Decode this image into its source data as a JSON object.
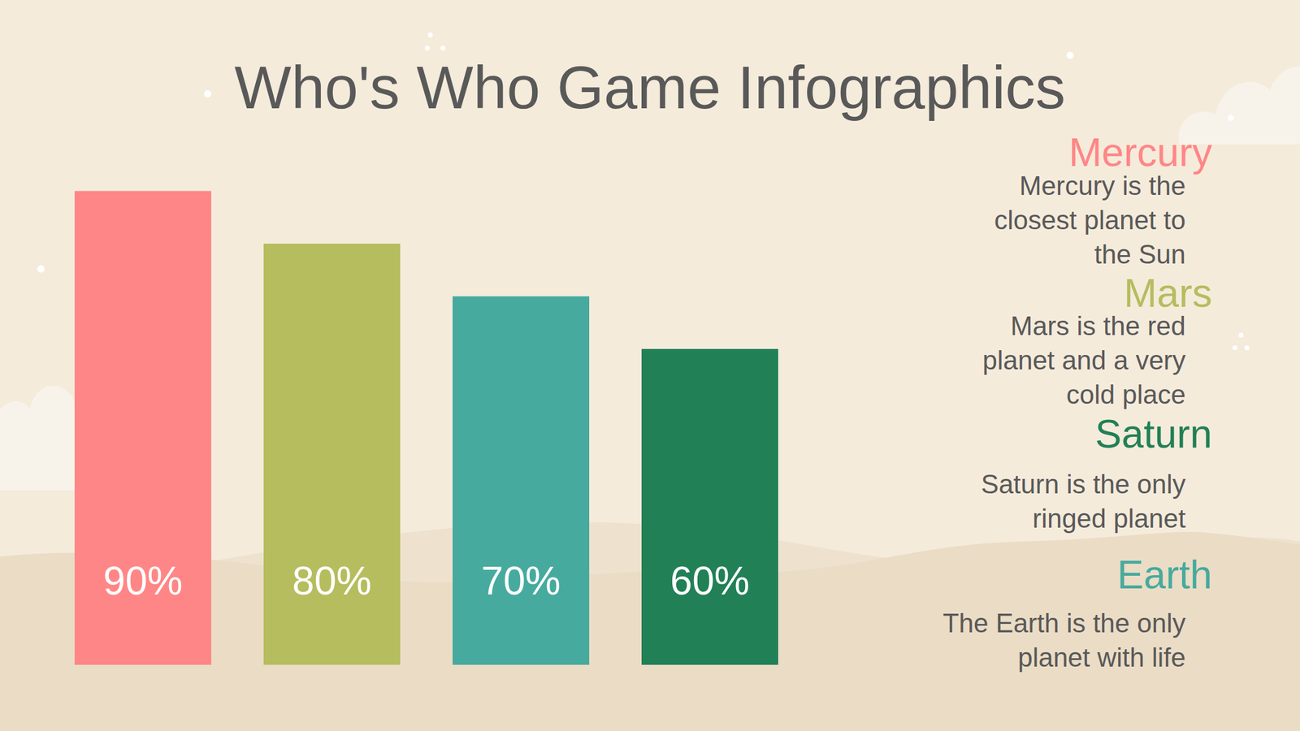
{
  "chart_data": {
    "type": "bar",
    "title": "Who's Who Game Infographics",
    "categories": [
      null,
      null,
      null,
      null
    ],
    "values": [
      90,
      80,
      70,
      60
    ],
    "value_labels": [
      "90%",
      "80%",
      "70%",
      "60%"
    ],
    "colors": [
      "#ff8686",
      "#b5bd5e",
      "#47aa9e",
      "#218056"
    ],
    "ylim": [
      0,
      100
    ],
    "tick_labels": false,
    "grid": false,
    "data_labels": true,
    "annotations": [
      {
        "title": "Mercury",
        "color": "#ff8686",
        "lines": [
          "Mercury is the",
          "closest planet to",
          "the Sun"
        ]
      },
      {
        "title": "Mars",
        "color": "#b5bd5e",
        "lines": [
          "Mars is the red",
          "planet and a very",
          "cold place"
        ]
      },
      {
        "title": "Saturn",
        "color": "#218056",
        "lines": [
          "Saturn is the only",
          "ringed planet"
        ]
      },
      {
        "title": "Earth",
        "color": "#47aa9e",
        "lines": [
          "The Earth is the only",
          "planet with life"
        ]
      }
    ]
  }
}
